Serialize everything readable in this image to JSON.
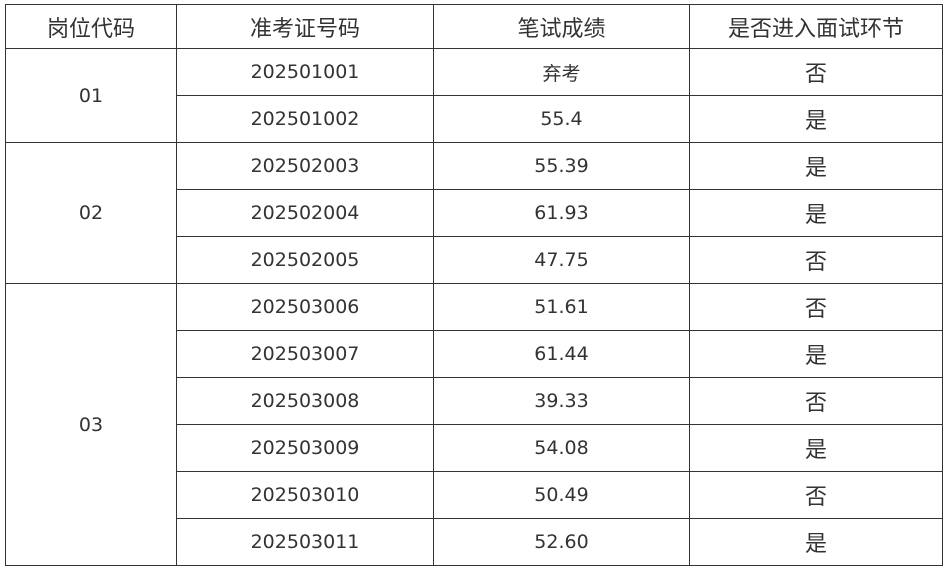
{
  "headers": [
    "岗位代码",
    "准考证号码",
    "笔试成绩",
    "是否进入面试环节"
  ],
  "groups": [
    {
      "code": "01",
      "rows": [
        {
          "id": "202501001",
          "score": "弃考",
          "pass": "否"
        },
        {
          "id": "202501002",
          "score": "55.4",
          "pass": "是"
        }
      ]
    },
    {
      "code": "02",
      "rows": [
        {
          "id": "202502003",
          "score": "55.39",
          "pass": "是"
        },
        {
          "id": "202502004",
          "score": "61.93",
          "pass": "是"
        },
        {
          "id": "202502005",
          "score": "47.75",
          "pass": "否"
        }
      ]
    },
    {
      "code": "03",
      "rows": [
        {
          "id": "202503006",
          "score": "51.61",
          "pass": "否"
        },
        {
          "id": "202503007",
          "score": "61.44",
          "pass": "是"
        },
        {
          "id": "202503008",
          "score": "39.33",
          "pass": "否"
        },
        {
          "id": "202503009",
          "score": "54.08",
          "pass": "是"
        },
        {
          "id": "202503010",
          "score": "50.49",
          "pass": "否"
        },
        {
          "id": "202503011",
          "score": "52.60",
          "pass": "是"
        }
      ]
    }
  ]
}
